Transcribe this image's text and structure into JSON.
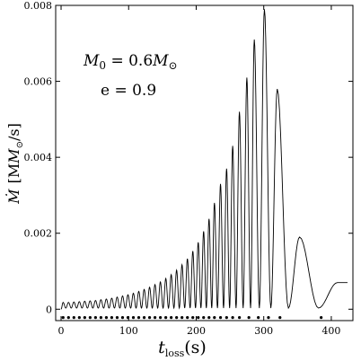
{
  "chart_data": {
    "type": "line",
    "xlabel_main": "t",
    "xlabel_sub": "loss",
    "xlabel_unit": "(s)",
    "ylabel_main": "Ṁ",
    "ylabel_unit": "[M",
    "ylabel_unit_sub": "⊙",
    "ylabel_unit_tail": "/s]",
    "xlim": [
      -8,
      432
    ],
    "ylim": [
      -0.0003,
      0.008
    ],
    "x_ticks": [
      0,
      100,
      200,
      300,
      400
    ],
    "y_ticks": [
      {
        "value": 0,
        "label": "0"
      },
      {
        "value": 0.002,
        "label": "0.002"
      },
      {
        "value": 0.004,
        "label": "0.004"
      },
      {
        "value": 0.006,
        "label": "0.006"
      },
      {
        "value": 0.008,
        "label": "0.008"
      }
    ],
    "annotations": [
      {
        "id": "mass",
        "var": "M",
        "sub": "0",
        "eq": " = 0.6",
        "tail": "M",
        "tail_sub": "⊙"
      },
      {
        "id": "ecc",
        "text": "e = 0.9"
      }
    ],
    "peaks": {
      "t": [
        3,
        11,
        19,
        27,
        35,
        43,
        51,
        59,
        67,
        75,
        83,
        91,
        99,
        107,
        115,
        123,
        131,
        139,
        147,
        155,
        163,
        171,
        179,
        187,
        195,
        203,
        211,
        219,
        227,
        236,
        245,
        254,
        264,
        275,
        286,
        301,
        320,
        353,
        409
      ],
      "mdot": [
        0.00018,
        0.00018,
        0.00019,
        0.0002,
        0.00021,
        0.00022,
        0.00023,
        0.00025,
        0.00027,
        0.00029,
        0.00032,
        0.00035,
        0.00038,
        0.00042,
        0.00047,
        0.00052,
        0.00058,
        0.00065,
        0.00072,
        0.00081,
        0.00091,
        0.00103,
        0.00117,
        0.00133,
        0.00153,
        0.00176,
        0.00205,
        0.00238,
        0.0028,
        0.0033,
        0.0037,
        0.0043,
        0.0052,
        0.0061,
        0.0071,
        0.0079,
        0.0058,
        0.0019,
        0.0007
      ],
      "trough_min": 3e-05,
      "curve_start": [
        0,
        0.0
      ],
      "curve_end": [
        424,
        0.0007
      ]
    },
    "pericenter_passages": {
      "t": [
        3,
        11,
        19,
        27,
        35,
        43,
        51,
        59,
        67,
        75,
        83,
        91,
        99,
        107,
        115,
        123,
        131,
        139,
        147,
        155,
        163,
        171,
        179,
        187,
        195,
        203,
        211,
        219,
        227,
        236,
        245,
        254,
        264,
        278,
        292,
        307,
        324,
        385
      ],
      "mdot": -0.00022
    }
  }
}
